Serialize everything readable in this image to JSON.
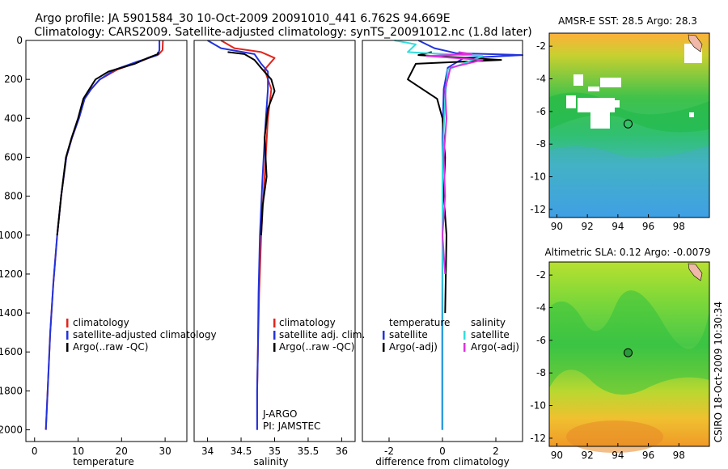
{
  "header": {
    "line1": "Argo profile: JA 5901584_30 10-Oct-2009 20091010_441 6.762S 94.669E",
    "line2": "Climatology: CARS2009. Satellite-adjusted climatology: synTS_20091012.nc (1.8d later)"
  },
  "credit": "CSIRO 18-Oct-2009 10:30:34",
  "colors": {
    "clim": "#e0261c",
    "sat": "#2233dd",
    "argo": "#000000",
    "sat_s": "#33dddd",
    "argo_s": "#dd33dd"
  },
  "chart_data": [
    {
      "id": "temperature",
      "type": "line",
      "xlabel": "temperature",
      "xlim": [
        -2,
        35
      ],
      "ylim": [
        2060,
        0
      ],
      "xticks": [
        0,
        10,
        20,
        30
      ],
      "yticks": [
        0,
        200,
        400,
        600,
        800,
        1000,
        1200,
        1400,
        1600,
        1800,
        2000
      ],
      "legend": [
        "climatology",
        "satellite-adjusted climatology",
        "Argo(..raw -QC)"
      ],
      "series": [
        {
          "name": "climatology",
          "color": "clim",
          "x": [
            29.5,
            29.4,
            28.6,
            24,
            19,
            15,
            13,
            11.5,
            10.2,
            8.6,
            7.3,
            6.1,
            5.2,
            4.3,
            3.6,
            3.0,
            2.6
          ],
          "y": [
            0,
            50,
            70,
            110,
            150,
            200,
            250,
            300,
            400,
            500,
            600,
            800,
            1000,
            1250,
            1500,
            1800,
            2000
          ]
        },
        {
          "name": "satellite-adjusted climatology",
          "color": "sat",
          "x": [
            28.7,
            28.7,
            28.3,
            23.5,
            18.5,
            15,
            13,
            11.5,
            10.2,
            8.6,
            7.3,
            6.1,
            5.2,
            4.3,
            3.6,
            3.0,
            2.6
          ],
          "y": [
            0,
            50,
            75,
            110,
            150,
            200,
            250,
            300,
            400,
            500,
            600,
            800,
            1000,
            1250,
            1500,
            1800,
            2000
          ]
        },
        {
          "name": "Argo(..raw -QC)",
          "color": "argo",
          "x": [
            28.4,
            28.3,
            26,
            23,
            17,
            14,
            12.6,
            11.2,
            10,
            8.5,
            7.2,
            6.1,
            5.2
          ],
          "y": [
            60,
            70,
            90,
            120,
            160,
            200,
            250,
            300,
            400,
            500,
            600,
            800,
            1000
          ]
        }
      ]
    },
    {
      "id": "salinity",
      "type": "line",
      "xlabel": "salinity",
      "xlim": [
        33.8,
        36.2
      ],
      "ylim": [
        2060,
        0
      ],
      "xticks": [
        34,
        34.5,
        35,
        35.5,
        36
      ],
      "yticks": [],
      "legend": [
        "climatology",
        "satellite adj. clim.",
        "Argo(..raw -QC)"
      ],
      "annotations": [
        "J-ARGO",
        "PI: JAMSTEC"
      ],
      "series": [
        {
          "name": "climatology",
          "color": "clim",
          "x": [
            34.2,
            34.4,
            34.8,
            35.0,
            34.85,
            34.95,
            34.9,
            34.85,
            34.8,
            34.77,
            34.75,
            34.74,
            34.74
          ],
          "y": [
            0,
            40,
            60,
            90,
            150,
            250,
            400,
            700,
            1000,
            1300,
            1600,
            1800,
            2000
          ]
        },
        {
          "name": "satellite adj. clim.",
          "color": "sat",
          "x": [
            34.0,
            34.2,
            34.7,
            34.8,
            34.9,
            34.9,
            34.87,
            34.82,
            34.78,
            34.76,
            34.75,
            34.74,
            34.74
          ],
          "y": [
            0,
            40,
            70,
            120,
            160,
            250,
            400,
            700,
            1000,
            1300,
            1600,
            1800,
            2000
          ]
        },
        {
          "name": "Argo(..raw -QC)",
          "color": "argo",
          "x": [
            34.3,
            34.55,
            34.7,
            34.82,
            34.95,
            35.0,
            34.9,
            34.85,
            34.88,
            34.82,
            34.8
          ],
          "y": [
            60,
            70,
            100,
            150,
            200,
            260,
            350,
            500,
            700,
            850,
            1000
          ]
        }
      ]
    },
    {
      "id": "difference",
      "type": "line",
      "xlabel": "difference from climatology",
      "xlim": [
        -3,
        3
      ],
      "ylim": [
        2060,
        0
      ],
      "xticks": [
        -2,
        0,
        2
      ],
      "yticks": [],
      "legend_left": [
        "temperature",
        "satellite",
        "Argo(-adj)"
      ],
      "legend_right": [
        "salinity",
        "satellite",
        "Argo(-adj)"
      ],
      "series": [
        {
          "name": "temperature satellite",
          "color": "sat",
          "x": [
            -0.9,
            -0.3,
            0.5,
            3.0,
            0.8,
            0.2,
            0.05,
            0,
            0,
            0,
            0
          ],
          "y": [
            0,
            40,
            65,
            75,
            90,
            140,
            250,
            500,
            1000,
            1500,
            2000
          ]
        },
        {
          "name": "temperature Argo(-adj)",
          "color": "argo",
          "x": [
            -0.4,
            -0.9,
            2.2,
            -1.0,
            -1.3,
            -0.2,
            0.0,
            0.1,
            0.05,
            0.15,
            0.1
          ],
          "y": [
            60,
            75,
            100,
            120,
            200,
            300,
            400,
            600,
            800,
            1000,
            1400
          ]
        },
        {
          "name": "salinity satellite",
          "color": "sat_s",
          "x": [
            -1.8,
            -1.0,
            -1.3,
            1.5,
            0.2,
            0.1,
            0,
            0,
            -0.02,
            -0.02
          ],
          "y": [
            0,
            20,
            60,
            80,
            150,
            300,
            600,
            1000,
            1500,
            2000
          ]
        },
        {
          "name": "salinity Argo(-adj)",
          "color": "argo_s",
          "x": [
            0.6,
            1.1,
            -0.6,
            1.5,
            0.3,
            0.1,
            0.15,
            0.05,
            0.1,
            0.0,
            0.1
          ],
          "y": [
            60,
            70,
            80,
            100,
            140,
            250,
            400,
            600,
            800,
            1000,
            1200
          ]
        }
      ]
    },
    {
      "id": "amsr-map",
      "type": "heatmap",
      "title": "AMSR-E SST: 28.5 Argo: 28.3",
      "xlim": [
        89.5,
        100
      ],
      "ylim": [
        -12.5,
        -1.2
      ],
      "xticks": [
        90,
        92,
        94,
        96,
        98
      ],
      "yticks": [
        -2,
        -4,
        -6,
        -8,
        -10,
        -12
      ],
      "marker": {
        "lon": 94.669,
        "lat": -6.762
      }
    },
    {
      "id": "sla-map",
      "type": "heatmap",
      "title": "Altimetric SLA: 0.12 Argo: -0.0079",
      "xlim": [
        89.5,
        100
      ],
      "ylim": [
        -12.5,
        -1.2
      ],
      "xticks": [
        90,
        92,
        94,
        96,
        98
      ],
      "yticks": [
        -2,
        -4,
        -6,
        -8,
        -10,
        -12
      ],
      "marker": {
        "lon": 94.669,
        "lat": -6.762
      }
    }
  ]
}
